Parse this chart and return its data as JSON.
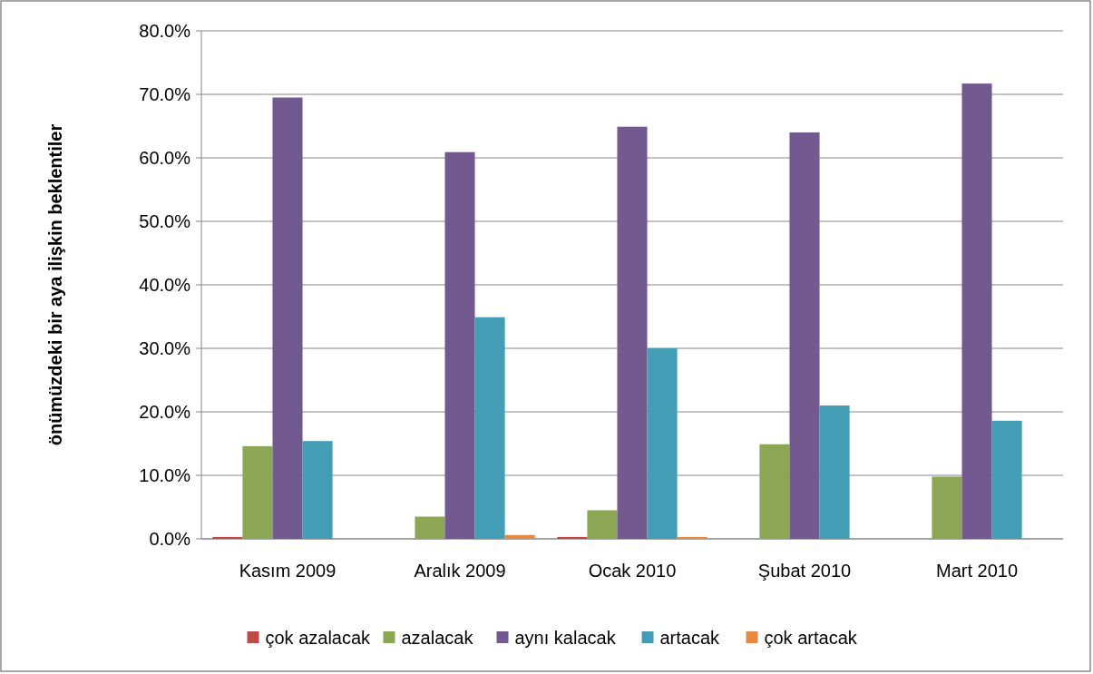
{
  "chart_data": {
    "type": "bar",
    "ylabel": "önümüzdeki bir aya ilişkin beklentiler",
    "categories": [
      "Kasım 2009",
      "Aralık 2009",
      "Ocak 2010",
      "Şubat 2010",
      "Mart 2010"
    ],
    "series": [
      {
        "name": "çok azalacak",
        "color": "#be4b48",
        "values": [
          0.3,
          0,
          0.3,
          0,
          0
        ]
      },
      {
        "name": "azalacak",
        "color": "#8ba753",
        "values": [
          14.6,
          3.5,
          4.5,
          14.9,
          9.8
        ]
      },
      {
        "name": "aynı kalacak",
        "color": "#725a91",
        "values": [
          69.5,
          60.9,
          64.9,
          64.0,
          71.7
        ]
      },
      {
        "name": "artacak",
        "color": "#429db5",
        "values": [
          15.4,
          34.9,
          30.0,
          21.0,
          18.6
        ]
      },
      {
        "name": "çok artacak",
        "color": "#e58a42",
        "values": [
          0,
          0.6,
          0.3,
          0,
          0
        ]
      }
    ],
    "ylim": [
      0,
      80
    ],
    "yticks": [
      {
        "value": 0,
        "label": "0.0%"
      },
      {
        "value": 10,
        "label": "10.0%"
      },
      {
        "value": 20,
        "label": "20.0%"
      },
      {
        "value": 30,
        "label": "30.0%"
      },
      {
        "value": 40,
        "label": "40.0%"
      },
      {
        "value": 50,
        "label": "50.0%"
      },
      {
        "value": 60,
        "label": "60.0%"
      },
      {
        "value": 70,
        "label": "70.0%"
      },
      {
        "value": 80,
        "label": "80.0%"
      }
    ],
    "grid": "y",
    "legend": "bottom"
  }
}
